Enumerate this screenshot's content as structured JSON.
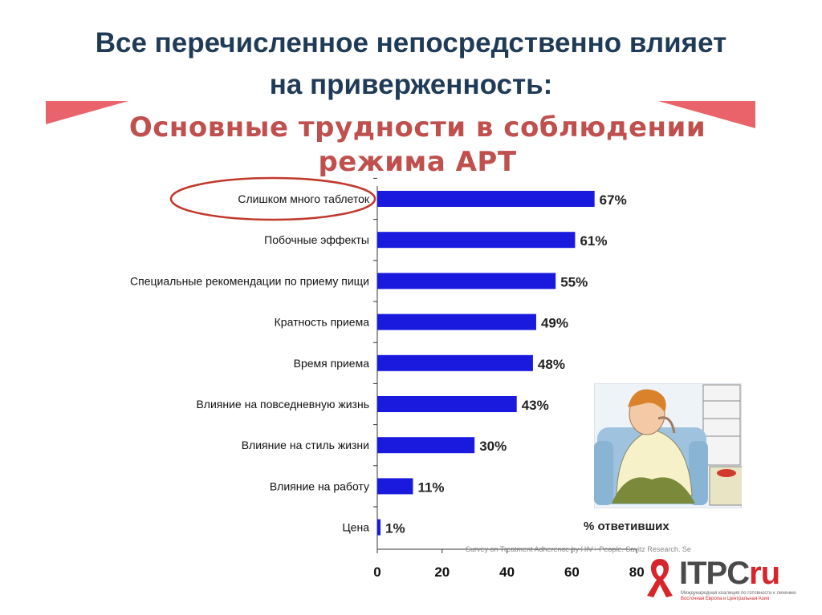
{
  "slide": {
    "title_line1": "Все перечисленное непосредственно влияет",
    "title_line2": "на приверженность:"
  },
  "chart_data": {
    "type": "bar",
    "orientation": "horizontal",
    "title_line1": "Основные трудности в соблюдении",
    "title_line2": "режима АРТ",
    "categories": [
      "Слишком много таблеток",
      "Побочные эффекты",
      "Специальные рекомендации по приему пищи",
      "Кратность приема",
      "Время приема",
      "Влияние на повседневную жизнь",
      "Влияние на стиль жизни",
      "Влияние на работу",
      "Цена"
    ],
    "values": [
      67,
      61,
      55,
      49,
      48,
      43,
      30,
      11,
      1
    ],
    "value_labels": [
      "67%",
      "61%",
      "55%",
      "49%",
      "48%",
      "43%",
      "30%",
      "11%",
      "1%"
    ],
    "xlabel": "% ответивших",
    "xticks": [
      "0",
      "20",
      "40",
      "60",
      "80"
    ],
    "xlim": [
      0,
      80
    ],
    "highlighted_category": "Слишком много таблеток",
    "source": "Survey on Treatment Adherence by HIV+ People. Savitz Research. Se",
    "bar_color": "#1a1adf",
    "title_color": "#c0504d",
    "highlight_color": "#c0392b"
  },
  "logo": {
    "name": "ITPC",
    "suffix": "ru",
    "subtitle_line1": "Международная коалиция по готовности к лечению",
    "subtitle_line2": "Восточная Европа и Центральная Азия"
  }
}
